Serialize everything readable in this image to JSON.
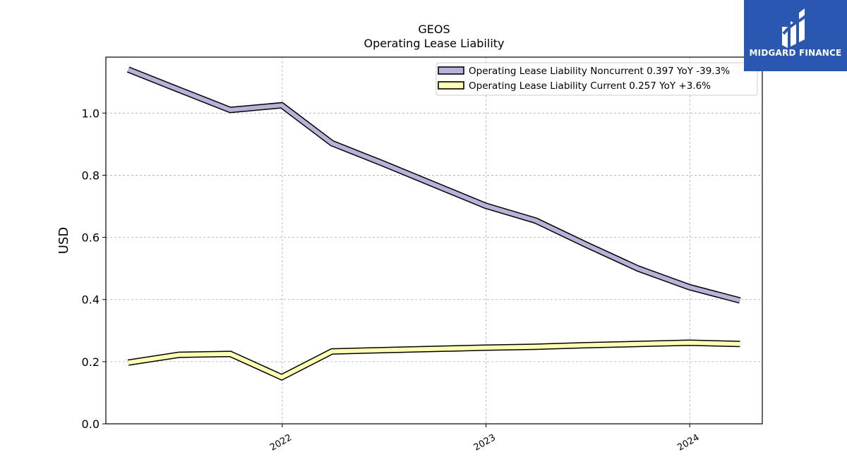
{
  "chart_data": {
    "type": "line",
    "title": "GEOS",
    "subtitle": "Operating Lease Liability",
    "ylabel": "USD",
    "xlabel": "",
    "ylim": [
      0,
      1.18
    ],
    "xlim": [
      "2021-02-19",
      "2024-05-10"
    ],
    "yticks": [
      0.0,
      0.2,
      0.4,
      0.6,
      0.8,
      1.0
    ],
    "ytick_labels": [
      "0.0",
      "0.2",
      "0.4",
      "0.6",
      "0.8",
      "1.0"
    ],
    "xticks": [
      "2022-01-01",
      "2023-01-01",
      "2024-01-01"
    ],
    "xtick_labels": [
      "2022",
      "2023",
      "2024"
    ],
    "grid": true,
    "legend_position": "top-right",
    "series": [
      {
        "name": "Operating Lease Liability Noncurrent  0.397 YoY -39.3%",
        "color": "#b7b3d8",
        "x": [
          "2021-03-31",
          "2021-06-30",
          "2021-09-30",
          "2021-12-31",
          "2022-03-31",
          "2022-06-30",
          "2022-09-30",
          "2022-12-31",
          "2023-03-31",
          "2023-06-30",
          "2023-09-30",
          "2023-12-31",
          "2024-03-31"
        ],
        "values": [
          1.14,
          1.075,
          1.01,
          1.025,
          0.903,
          0.838,
          0.77,
          0.702,
          0.654,
          0.576,
          0.5,
          0.44,
          0.397
        ]
      },
      {
        "name": "Operating Lease Liability Current  0.257 YoY +3.6%",
        "color": "#ffffb3",
        "x": [
          "2021-03-31",
          "2021-06-30",
          "2021-09-30",
          "2021-12-31",
          "2022-03-31",
          "2022-06-30",
          "2022-09-30",
          "2022-12-31",
          "2023-03-31",
          "2023-06-30",
          "2023-09-30",
          "2023-12-31",
          "2024-03-31"
        ],
        "values": [
          0.197,
          0.222,
          0.225,
          0.15,
          0.233,
          0.237,
          0.241,
          0.245,
          0.248,
          0.253,
          0.257,
          0.261,
          0.257
        ]
      }
    ]
  },
  "logo": {
    "text": "MIDGARD FINANCE",
    "color": "#2a57b0"
  }
}
